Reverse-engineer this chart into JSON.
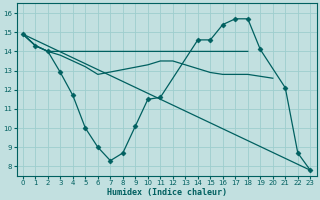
{
  "xlabel": "Humidex (Indice chaleur)",
  "xlim": [
    -0.5,
    23.5
  ],
  "ylim": [
    7.5,
    16.5
  ],
  "xticks": [
    0,
    1,
    2,
    3,
    4,
    5,
    6,
    7,
    8,
    9,
    10,
    11,
    12,
    13,
    14,
    15,
    16,
    17,
    18,
    19,
    20,
    21,
    22,
    23
  ],
  "yticks": [
    8,
    9,
    10,
    11,
    12,
    13,
    14,
    15,
    16
  ],
  "bg_color": "#c2e0e0",
  "line_color": "#006060",
  "grid_color": "#9ecece",
  "linewidth": 0.9,
  "markersize": 2.5,
  "line1_x": [
    0,
    1,
    2,
    3,
    10,
    11,
    12,
    13,
    14,
    15,
    16,
    17,
    18
  ],
  "line1_y": [
    14.9,
    14.3,
    14.0,
    14.0,
    14.0,
    14.0,
    14.0,
    14.0,
    14.0,
    14.0,
    14.0,
    14.0,
    14.0
  ],
  "line2_x": [
    0,
    1,
    2,
    3,
    4,
    5,
    6,
    10,
    11,
    12,
    13,
    14,
    15,
    16,
    17,
    18,
    19,
    20
  ],
  "line2_y": [
    14.9,
    14.3,
    14.0,
    13.8,
    13.5,
    13.2,
    12.8,
    13.3,
    13.5,
    13.5,
    13.3,
    13.1,
    12.9,
    12.8,
    12.8,
    12.8,
    12.7,
    12.6
  ],
  "line3_x": [
    0,
    1,
    2,
    3,
    4,
    5,
    6,
    7,
    8,
    9,
    10,
    11,
    14,
    15,
    16,
    17,
    18,
    19,
    21,
    22,
    23
  ],
  "line3_y": [
    14.9,
    14.3,
    14.0,
    12.9,
    11.7,
    10.0,
    9.0,
    8.3,
    8.7,
    10.1,
    11.5,
    11.6,
    14.6,
    14.6,
    15.4,
    15.7,
    15.7,
    14.1,
    12.1,
    8.7,
    7.8
  ],
  "line4_x": [
    0,
    23
  ],
  "line4_y": [
    14.9,
    7.8
  ]
}
